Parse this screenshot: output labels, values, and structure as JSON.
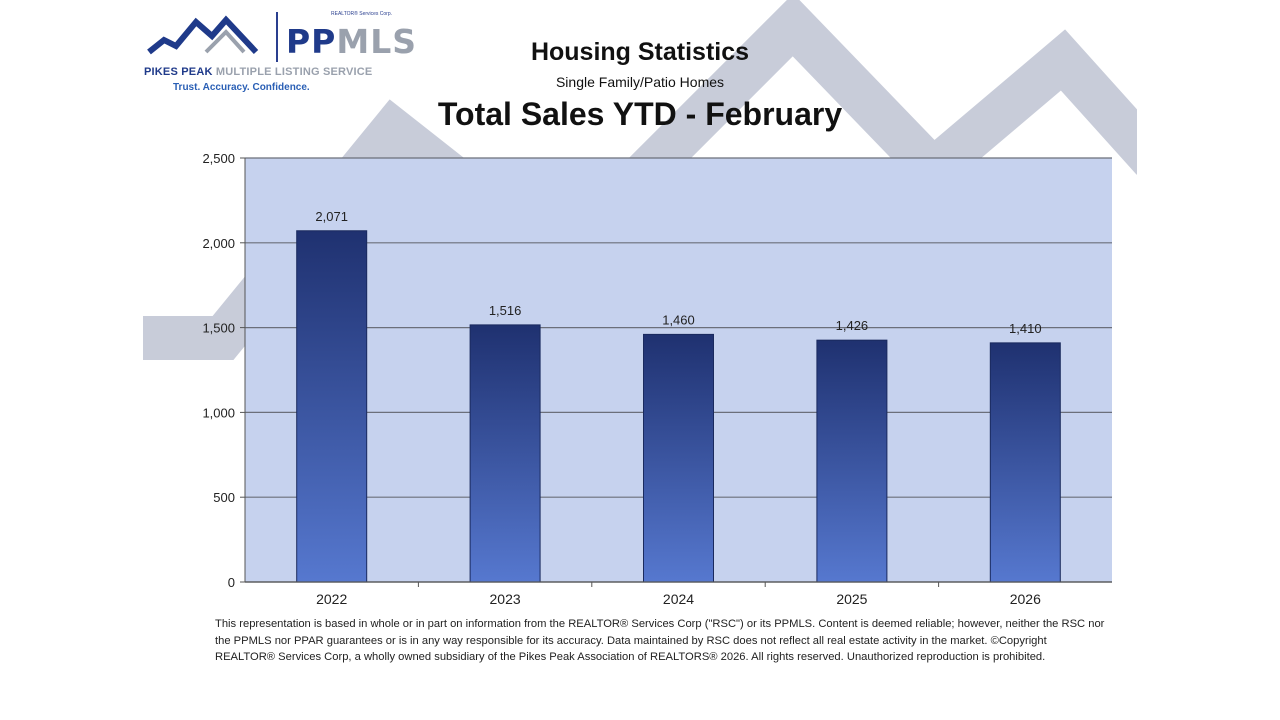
{
  "logo": {
    "corp": "REALTOR® Services Corp.",
    "brand_pp": "PP",
    "brand_mls": "MLS",
    "fullname_a": "PIKES PEAK",
    "fullname_b": " MULTIPLE LISTING SERVICE",
    "tagline": "Trust. Accuracy. Confidence."
  },
  "chart_data": {
    "type": "bar",
    "title": "Housing Statistics",
    "subtitle": "Single Family/Patio Homes",
    "heading": "Total Sales YTD - February",
    "categories": [
      "2022",
      "2023",
      "2024",
      "2025",
      "2026"
    ],
    "values": [
      2071,
      1516,
      1460,
      1426,
      1410
    ],
    "value_labels": [
      "2,071",
      "1,516",
      "1,460",
      "1,426",
      "1,410"
    ],
    "ylim": [
      0,
      2500
    ],
    "yticks": [
      0,
      500,
      1000,
      1500,
      2000,
      2500
    ],
    "ytick_labels": [
      "0",
      "500",
      "1,000",
      "1,500",
      "2,000",
      "2,500"
    ],
    "xlabel": "",
    "ylabel": "",
    "grid": true,
    "legend": "none",
    "colors": {
      "plot_background": "#c6d2ee",
      "bar_top": "#1f3170",
      "bar_bottom": "#5678cf",
      "gridline": "#6b6f7a"
    }
  },
  "disclaimer": "This representation is based in whole or in part on information from the REALTOR® Services Corp (\"RSC\") or its PPMLS. Content is deemed reliable; however, neither the RSC nor the PPMLS nor PPAR guarantees or is in any way responsible for its accuracy. Data maintained by RSC does not reflect all real estate activity in the market. ©Copyright REALTOR® Services Corp, a wholly owned subsidiary of the Pikes Peak Association of REALTORS® 2026. All rights reserved. Unauthorized reproduction is prohibited."
}
